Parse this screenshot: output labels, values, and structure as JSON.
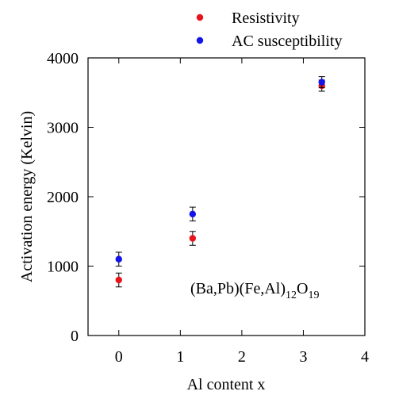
{
  "chart_data": {
    "type": "scatter",
    "title": "",
    "xlabel": "Al content x",
    "ylabel": "Activation energy (Kelvin)",
    "xlim": [
      -0.5,
      4
    ],
    "ylim": [
      0,
      4000
    ],
    "x_ticks": [
      0,
      1,
      2,
      3,
      4
    ],
    "y_ticks": [
      0,
      1000,
      2000,
      3000,
      4000
    ],
    "x_tick_labels": [
      "0",
      "1",
      "2",
      "3",
      "4"
    ],
    "y_tick_labels": [
      "0",
      "1000",
      "2000",
      "3000",
      "4000"
    ],
    "grid": false,
    "legend_position": "top-right, outside plot",
    "annotation": {
      "prefix": "(Ba,Pb)(Fe,Al)",
      "sub1": "12",
      "mid": "O",
      "sub2": "19"
    },
    "series": [
      {
        "name": "Resistivity",
        "color": "#e8141c",
        "x": [
          0,
          1.2,
          3.3
        ],
        "y": [
          800,
          1400,
          3600
        ],
        "yerr": [
          100,
          100,
          80
        ]
      },
      {
        "name": "AC susceptibility",
        "color": "#1414e8",
        "x": [
          0,
          1.2,
          3.3
        ],
        "y": [
          1100,
          1750,
          3650
        ],
        "yerr": [
          100,
          100,
          80
        ]
      }
    ]
  }
}
